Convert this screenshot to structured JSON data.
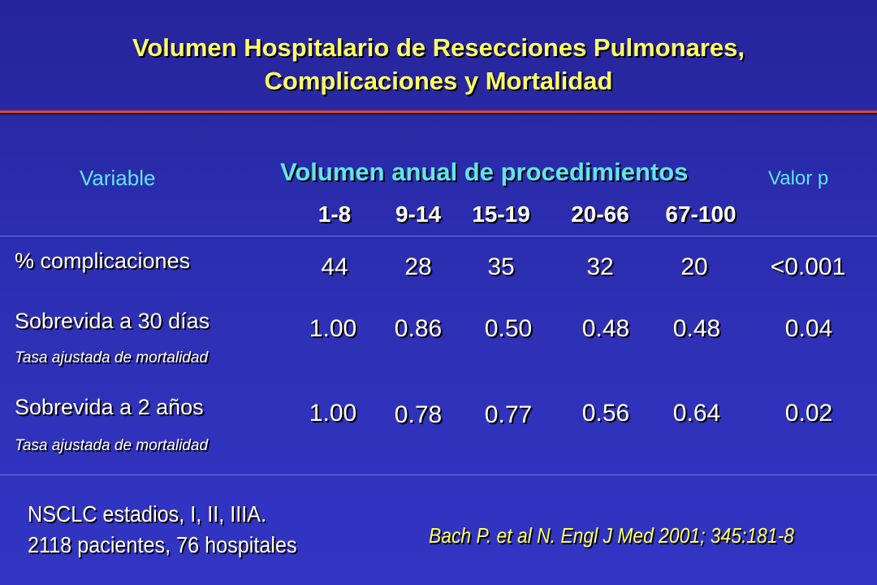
{
  "slide": {
    "title_line1": "Volumen Hospitalario de Resecciones Pulmonares,",
    "title_line2": "Complicaciones y Mortalidad"
  },
  "table": {
    "variable_header": "Variable",
    "volume_header": "Volumen anual de procedimientos",
    "p_header": "Valor p",
    "columns": [
      "1-8",
      "9-14",
      "15-19",
      "20-66",
      "67-100"
    ],
    "rows": [
      {
        "label": "% complicaciones",
        "sublabel": "",
        "values": [
          "44",
          "28",
          "35",
          "32",
          "20"
        ],
        "p": "<0.001"
      },
      {
        "label": "Sobrevida a 30 días",
        "sublabel": "Tasa ajustada de mortalidad",
        "values": [
          "1.00",
          "0.86",
          "0.50",
          "0.48",
          "0.48"
        ],
        "p": "0.04"
      },
      {
        "label": "Sobrevida a 2 años",
        "sublabel": "Tasa ajustada de mortalidad",
        "values": [
          "1.00",
          "0.78",
          "0.77",
          "0.56",
          "0.64"
        ],
        "p": "0.02"
      }
    ]
  },
  "footer": {
    "note_line1": "NSCLC  estadios, I, II, IIIA.",
    "note_line2": "2118 pacientes, 76 hospitales",
    "reference": "Bach P. et al N. Engl J Med 2001; 345:181-8"
  }
}
